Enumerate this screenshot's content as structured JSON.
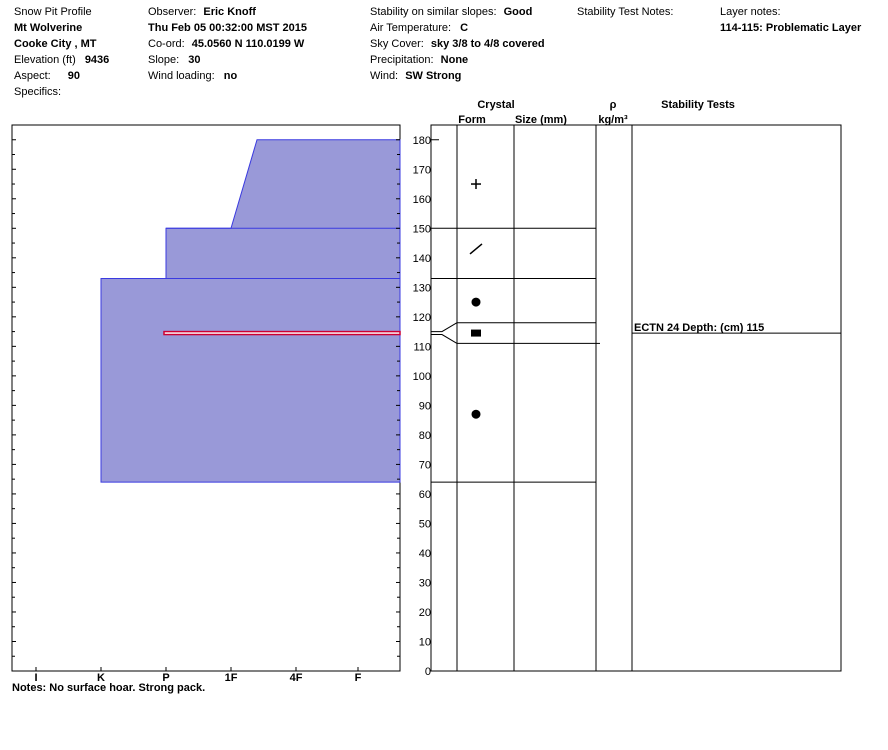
{
  "header": {
    "col1": {
      "title": "Snow Pit Profile",
      "location": "Mt Wolverine",
      "region": "Cooke City , MT",
      "elevation_label": "Elevation (ft)",
      "elevation_value": "9436",
      "aspect_label": "Aspect:",
      "aspect_value": "90",
      "specifics_label": "Specifics:"
    },
    "col2": {
      "observer_label": "Observer:",
      "observer_value": "Eric Knoff",
      "datetime": "Thu Feb 05 00:32:00 MST 2015",
      "coord_label": "Co-ord:",
      "coord_value": "45.0560 N 110.0199 W",
      "slope_label": "Slope:",
      "slope_value": "30",
      "wind_loading_label": "Wind loading:",
      "wind_loading_value": "no"
    },
    "col3": {
      "stability_label": "Stability on similar slopes:",
      "stability_value": "Good",
      "air_temp_label": "Air Temperature:",
      "air_temp_value": "C",
      "sky_label": "Sky Cover:",
      "sky_value": "sky 3/8 to 4/8 covered",
      "precip_label": "Precipitation:",
      "precip_value": "None",
      "wind_label": "Wind:",
      "wind_value": "SW Strong"
    },
    "col4": {
      "test_notes_label": "Stability Test Notes:"
    },
    "col5": {
      "layer_notes_label": "Layer notes:",
      "layer_notes_value": "114-115: Problematic Layer"
    }
  },
  "table_headers": {
    "crystal": "Crystal",
    "form": "Form",
    "size": "Size (mm)",
    "rho": "ρ",
    "density_unit": "kg/m³",
    "stability_tests": "Stability Tests"
  },
  "notes": "Notes: No surface hoar. Strong pack.",
  "stability_test_entry": "ECTN 24  Depth: (cm) 115",
  "chart_data": {
    "type": "snow_profile",
    "y_range": [
      0,
      185
    ],
    "y_ticks": [
      0,
      10,
      20,
      30,
      40,
      50,
      60,
      70,
      80,
      90,
      100,
      110,
      120,
      130,
      140,
      150,
      160,
      170,
      180
    ],
    "hardness_scale": [
      "I",
      "K",
      "P",
      "1F",
      "4F",
      "F"
    ],
    "hardness_profile": [
      {
        "hardness": 1,
        "height": 64
      },
      {
        "hardness": 1,
        "height": 133
      },
      {
        "hardness": 2,
        "height": 133
      },
      {
        "hardness": 2,
        "height": 150
      },
      {
        "hardness": 3,
        "height": 150
      },
      {
        "hardness": 3.4,
        "height": 180
      },
      {
        "hardness": 3.65,
        "height": 180
      }
    ],
    "layer_boundaries": [
      64,
      111,
      118,
      133,
      150
    ],
    "problem_layer": {
      "top": 115,
      "bottom": 114
    },
    "crystal_symbols": [
      {
        "height": 165,
        "symbol": "plus"
      },
      {
        "height": 143,
        "symbol": "slash"
      },
      {
        "height": 125,
        "symbol": "dot"
      },
      {
        "height": 114.5,
        "symbol": "square"
      },
      {
        "height": 87,
        "symbol": "dot"
      }
    ],
    "stability_test": {
      "depth": 115
    },
    "colors": {
      "fill": "#9999d8",
      "edge": "#3a3ae0",
      "problem": "#cc0033"
    }
  }
}
